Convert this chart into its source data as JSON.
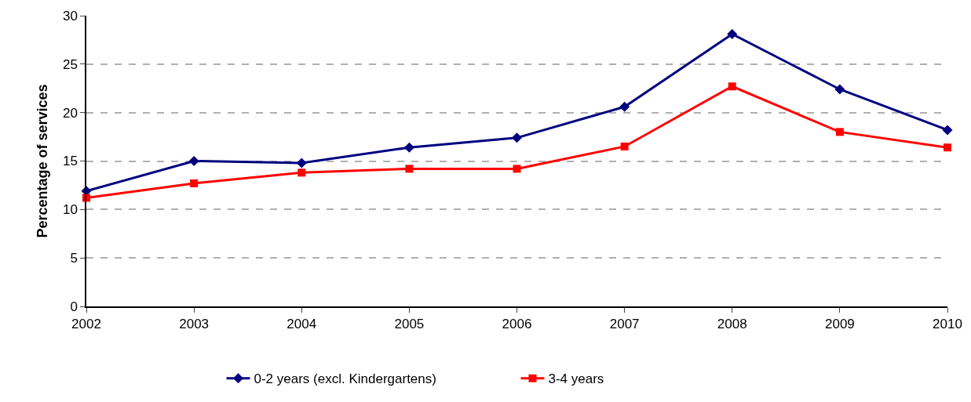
{
  "chart_data": {
    "type": "line",
    "ylabel": "Percentage of services",
    "categories": [
      "2002",
      "2003",
      "2004",
      "2005",
      "2006",
      "2007",
      "2008",
      "2009",
      "2010"
    ],
    "series": [
      {
        "name": "0-2 years (excl. Kindergartens)",
        "color": "#000080",
        "marker": "diamond",
        "values": [
          11.9,
          15.0,
          14.8,
          16.4,
          17.4,
          20.6,
          28.1,
          22.4,
          18.2
        ]
      },
      {
        "name": "3-4 years",
        "color": "#ff0000",
        "marker": "square",
        "values": [
          11.2,
          12.7,
          13.8,
          14.2,
          14.2,
          16.5,
          22.7,
          18.0,
          16.4
        ]
      }
    ],
    "ylim": [
      0,
      30
    ],
    "yticks": [
      0,
      5,
      10,
      15,
      20,
      25,
      30
    ],
    "grid": "y",
    "legend": "bottom",
    "line_style": "solid"
  }
}
